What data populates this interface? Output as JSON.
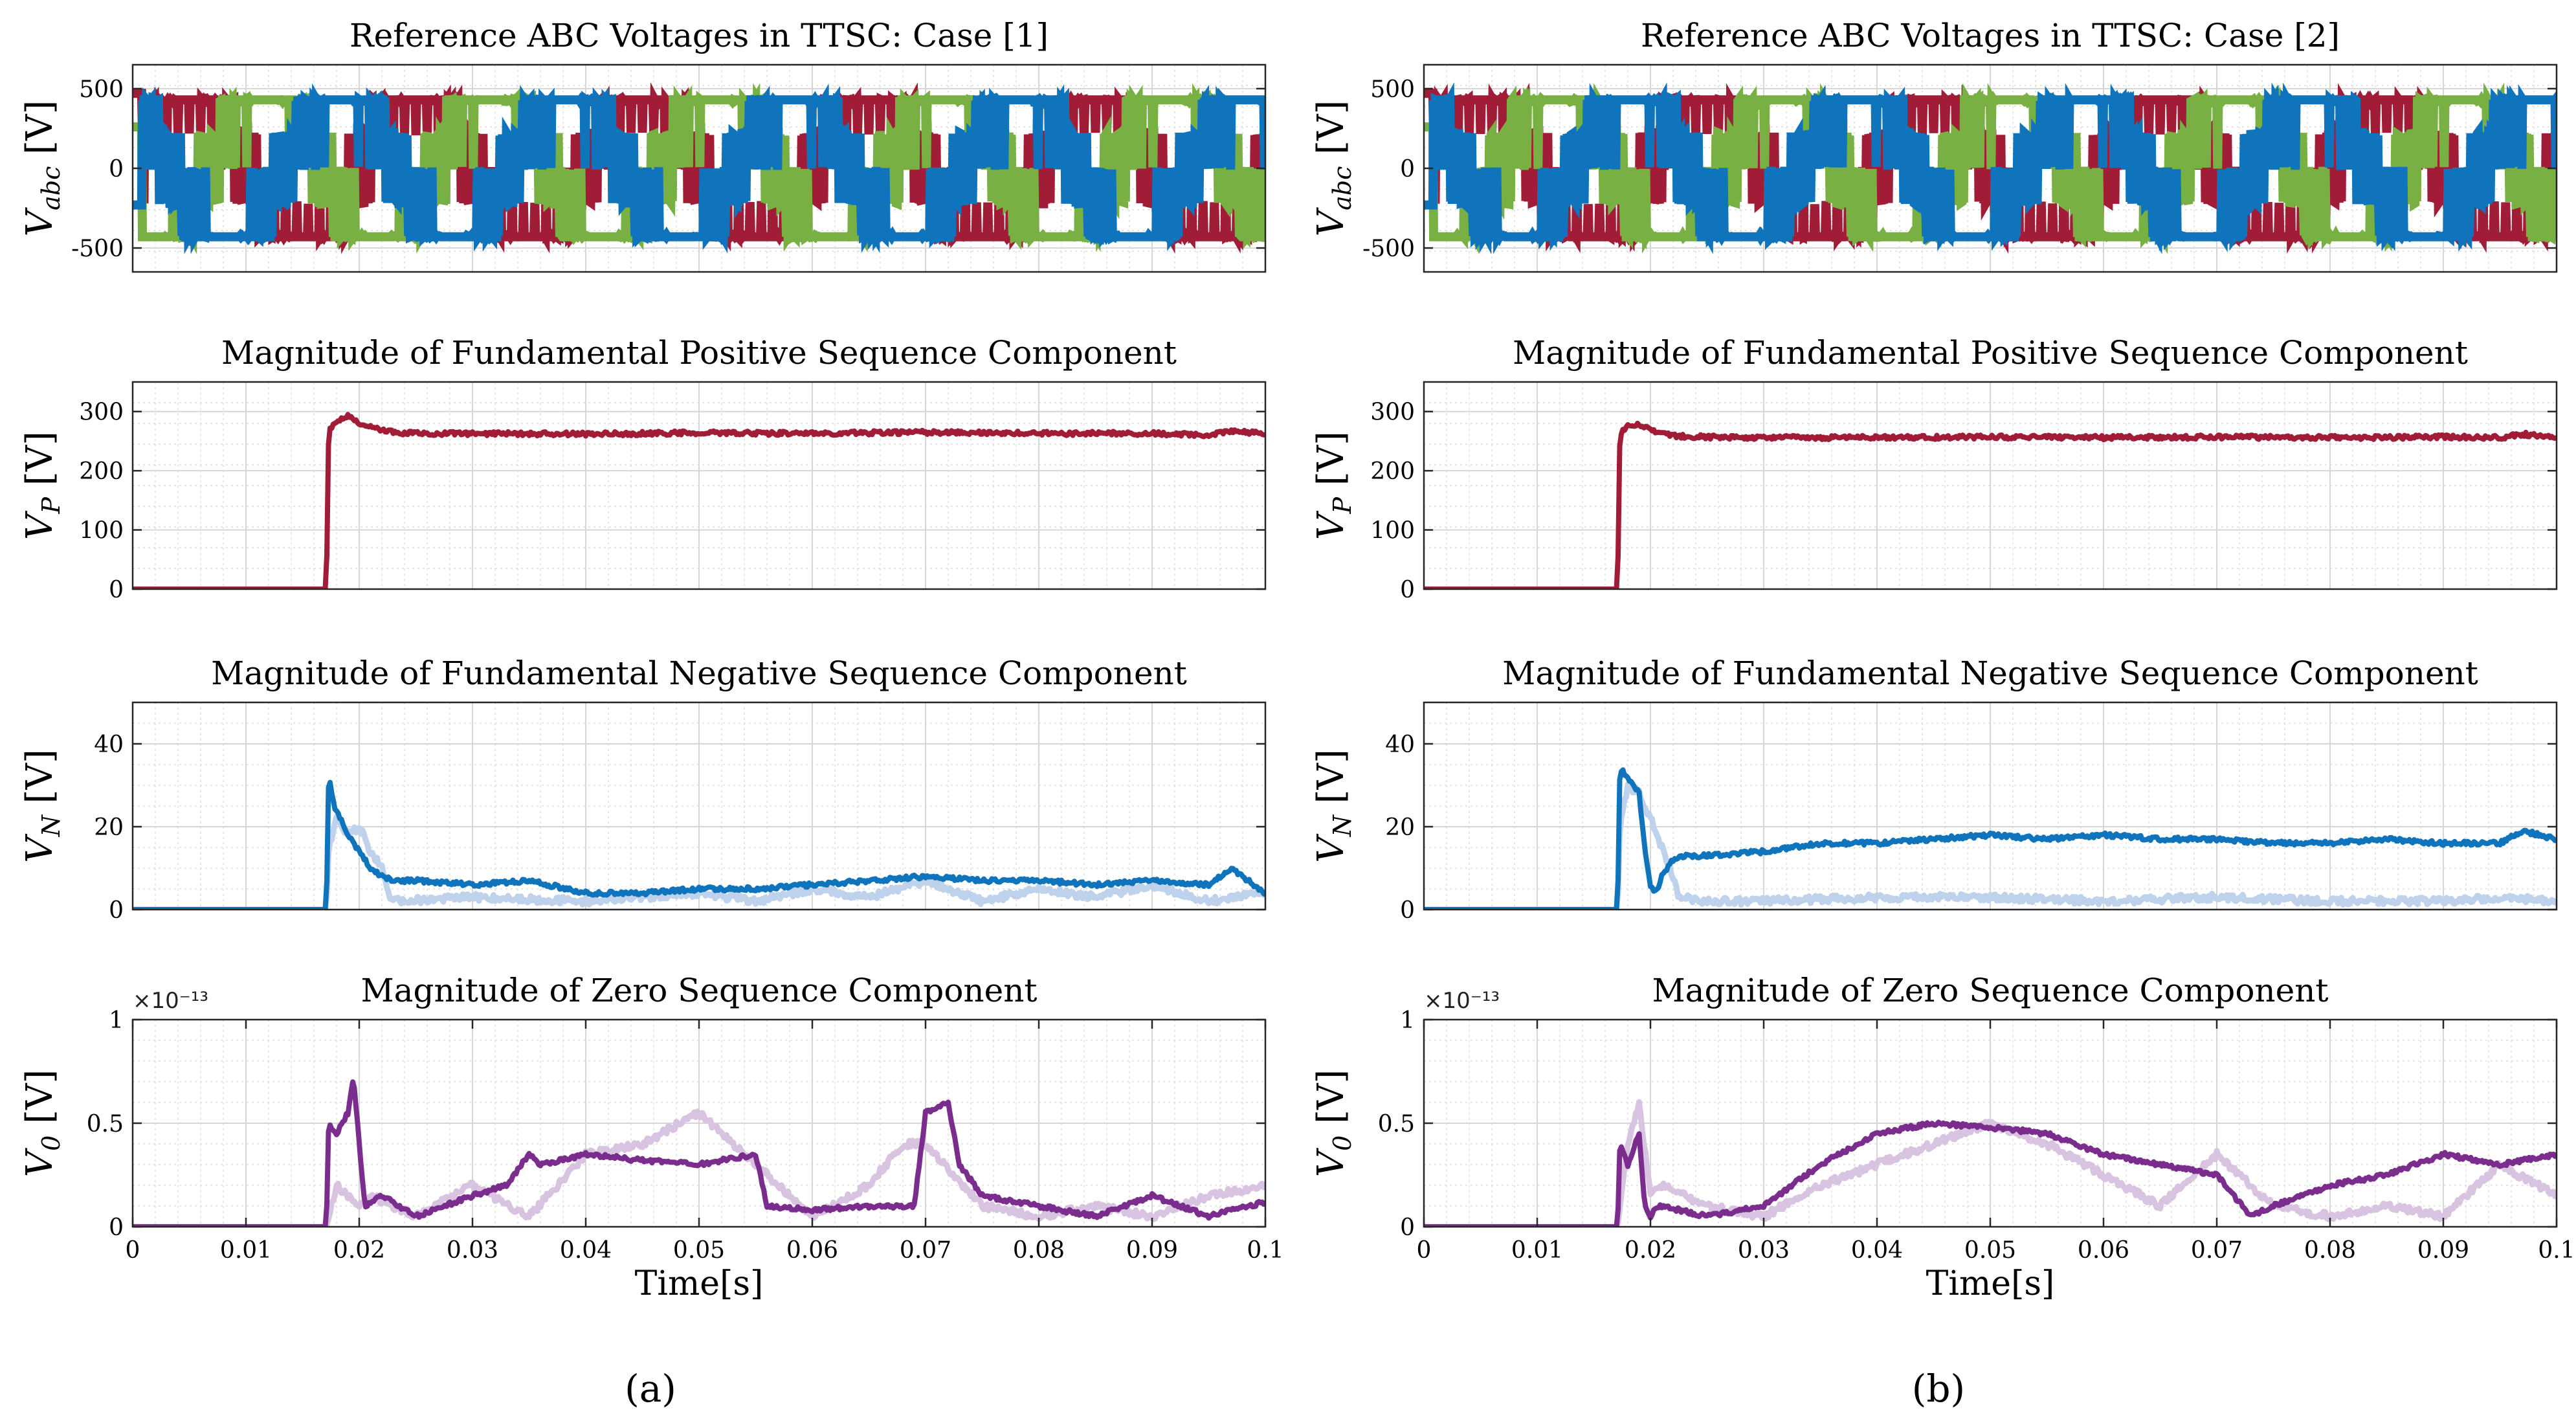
{
  "figure": {
    "panel_labels": [
      "(a)",
      "(b)"
    ],
    "x_label": "Time[s]",
    "colors": {
      "red": "#a11d37",
      "green": "#78b043",
      "blue": "#0f74bc",
      "blue_faint": "#bfd2ec",
      "purple": "#7b2d8e",
      "purple_faint": "#d8c4e0",
      "grid": "#d6d6d6"
    }
  },
  "chart_data": [
    {
      "id": "a1",
      "column": "a",
      "row": 0,
      "type": "line",
      "title": "Reference ABC Voltages in TTSC: Case [1]",
      "ylabel": "V_abc [V]",
      "xlim": [
        0,
        0.1
      ],
      "ylim": [
        -650,
        650
      ],
      "yticks": [
        -500,
        0,
        500
      ],
      "xticks": [],
      "series": [
        {
          "name": "a",
          "color": "#a11d37",
          "switching": true,
          "amplitude": 430,
          "phase_deg": 0,
          "frequency_hz": 50
        },
        {
          "name": "b",
          "color": "#78b043",
          "switching": true,
          "amplitude": 430,
          "phase_deg": -120,
          "frequency_hz": 50
        },
        {
          "name": "c",
          "color": "#0f74bc",
          "switching": true,
          "amplitude": 430,
          "phase_deg": 120,
          "frequency_hz": 50
        }
      ]
    },
    {
      "id": "a2",
      "column": "a",
      "row": 1,
      "type": "line",
      "title": "Magnitude of Fundamental Positive Sequence Component",
      "ylabel": "V_P [V]",
      "xlim": [
        0,
        0.1
      ],
      "ylim": [
        0,
        350
      ],
      "yticks": [
        0,
        100,
        200,
        300
      ],
      "xticks": [],
      "series": [
        {
          "name": "V_P",
          "color": "#a11d37",
          "x": [
            0,
            0.0171,
            0.0173,
            0.018,
            0.0185,
            0.019,
            0.0195,
            0.02,
            0.021,
            0.022,
            0.023,
            0.025,
            0.03,
            0.04,
            0.05,
            0.06,
            0.07,
            0.08,
            0.09,
            0.095,
            0.097,
            0.1
          ],
          "y": [
            0,
            0,
            265,
            285,
            288,
            292,
            287,
            280,
            273,
            268,
            265,
            263,
            263,
            262,
            264,
            263,
            265,
            263,
            263,
            260,
            268,
            262
          ]
        }
      ]
    },
    {
      "id": "a3",
      "column": "a",
      "row": 2,
      "type": "line",
      "title": "Magnitude of Fundamental Negative Sequence Component",
      "ylabel": "V_N [V]",
      "xlim": [
        0,
        0.1
      ],
      "ylim": [
        0,
        50
      ],
      "yticks": [
        0,
        20,
        40
      ],
      "xticks": [],
      "series": [
        {
          "name": "V_N (faint)",
          "color": "#bfd2ec",
          "x": [
            0,
            0.0171,
            0.0173,
            0.018,
            0.019,
            0.02,
            0.021,
            0.022,
            0.0225,
            0.023,
            0.03,
            0.04,
            0.05,
            0.055,
            0.06,
            0.065,
            0.07,
            0.075,
            0.08,
            0.085,
            0.09,
            0.095,
            0.1
          ],
          "y": [
            0,
            0,
            15,
            22,
            18,
            20,
            14,
            10,
            4,
            2,
            3,
            2,
            4,
            2,
            5,
            3,
            7,
            2,
            5,
            3,
            6,
            2,
            4
          ]
        },
        {
          "name": "V_N",
          "color": "#0f74bc",
          "x": [
            0,
            0.0171,
            0.0173,
            0.0178,
            0.019,
            0.02,
            0.021,
            0.022,
            0.023,
            0.025,
            0.03,
            0.035,
            0.04,
            0.045,
            0.05,
            0.055,
            0.06,
            0.065,
            0.07,
            0.075,
            0.08,
            0.085,
            0.09,
            0.095,
            0.097,
            0.1
          ],
          "y": [
            0,
            0,
            32,
            25,
            18,
            14,
            10,
            8,
            7,
            7,
            6,
            7,
            4,
            4,
            5,
            5,
            6,
            7,
            8,
            7,
            7,
            6,
            7,
            6,
            10,
            4
          ]
        }
      ]
    },
    {
      "id": "a4",
      "column": "a",
      "row": 3,
      "type": "line",
      "title": "Magnitude of Zero Sequence Component",
      "ylabel": "V_0 [V]",
      "xlim": [
        0,
        0.1
      ],
      "ylim": [
        0,
        1
      ],
      "yticks": [
        0,
        0.5,
        1
      ],
      "ytick_labels": [
        "0",
        "0.5",
        "1"
      ],
      "multiplier": "×10⁻¹³",
      "xticks": [
        0,
        0.01,
        0.02,
        0.03,
        0.04,
        0.05,
        0.06,
        0.07,
        0.08,
        0.09,
        0.1
      ],
      "xtick_labels": [
        "0",
        "0.01",
        "0.02",
        "0.03",
        "0.04",
        "0.05",
        "0.06",
        "0.07",
        "0.08",
        "0.09",
        "0.1"
      ],
      "xlabel": "Time[s]",
      "series": [
        {
          "name": "V_0 (faint)",
          "color": "#d8c4e0",
          "x": [
            0,
            0.0171,
            0.0175,
            0.018,
            0.019,
            0.02,
            0.021,
            0.025,
            0.03,
            0.035,
            0.04,
            0.045,
            0.05,
            0.055,
            0.06,
            0.065,
            0.068,
            0.07,
            0.075,
            0.08,
            0.085,
            0.09,
            0.095,
            0.1
          ],
          "y": [
            0,
            0,
            0.1,
            0.2,
            0.15,
            0.1,
            0.15,
            0.05,
            0.2,
            0.05,
            0.35,
            0.4,
            0.55,
            0.3,
            0.05,
            0.2,
            0.4,
            0.4,
            0.1,
            0.05,
            0.1,
            0.05,
            0.15,
            0.2
          ]
        },
        {
          "name": "V_0",
          "color": "#7b2d8e",
          "x": [
            0,
            0.0171,
            0.0173,
            0.018,
            0.019,
            0.0195,
            0.02,
            0.0205,
            0.022,
            0.025,
            0.03,
            0.033,
            0.035,
            0.036,
            0.04,
            0.045,
            0.05,
            0.055,
            0.056,
            0.06,
            0.065,
            0.069,
            0.07,
            0.072,
            0.073,
            0.075,
            0.08,
            0.085,
            0.09,
            0.095,
            0.1
          ],
          "y": [
            0,
            0,
            0.5,
            0.45,
            0.55,
            0.72,
            0.4,
            0.1,
            0.15,
            0.05,
            0.15,
            0.2,
            0.35,
            0.3,
            0.35,
            0.32,
            0.3,
            0.35,
            0.1,
            0.08,
            0.1,
            0.1,
            0.55,
            0.6,
            0.3,
            0.15,
            0.1,
            0.05,
            0.15,
            0.05,
            0.12
          ]
        }
      ]
    },
    {
      "id": "b1",
      "column": "b",
      "row": 0,
      "type": "line",
      "title": "Reference ABC Voltages in TTSC: Case [2]",
      "ylabel": "V_abc [V]",
      "xlim": [
        0,
        0.1
      ],
      "ylim": [
        -650,
        650
      ],
      "yticks": [
        -500,
        0,
        500
      ],
      "xticks": [],
      "series": [
        {
          "name": "a",
          "color": "#a11d37",
          "switching": true,
          "amplitude": 430,
          "phase_deg": 0,
          "frequency_hz": 50
        },
        {
          "name": "b",
          "color": "#78b043",
          "switching": true,
          "amplitude": 430,
          "phase_deg": -120,
          "frequency_hz": 50
        },
        {
          "name": "c",
          "color": "#0f74bc",
          "switching": true,
          "amplitude": 430,
          "phase_deg": 120,
          "frequency_hz": 50
        }
      ]
    },
    {
      "id": "b2",
      "column": "b",
      "row": 1,
      "type": "line",
      "title": "Magnitude of Fundamental Positive Sequence Component",
      "ylabel": "V_P [V]",
      "xlim": [
        0,
        0.1
      ],
      "ylim": [
        0,
        350
      ],
      "yticks": [
        0,
        100,
        200,
        300
      ],
      "xticks": [],
      "series": [
        {
          "name": "V_P",
          "color": "#a11d37",
          "x": [
            0,
            0.0171,
            0.0173,
            0.018,
            0.0185,
            0.019,
            0.02,
            0.021,
            0.022,
            0.025,
            0.03,
            0.04,
            0.05,
            0.06,
            0.07,
            0.08,
            0.09,
            0.095,
            0.097,
            0.1
          ],
          "y": [
            0,
            0,
            262,
            275,
            277,
            278,
            270,
            263,
            259,
            257,
            256,
            256,
            257,
            256,
            257,
            256,
            257,
            256,
            262,
            256
          ]
        }
      ]
    },
    {
      "id": "b3",
      "column": "b",
      "row": 2,
      "type": "line",
      "title": "Magnitude of Fundamental Negative Sequence Component",
      "ylabel": "V_N [V]",
      "xlim": [
        0,
        0.1
      ],
      "ylim": [
        0,
        50
      ],
      "yticks": [
        0,
        20,
        40
      ],
      "xticks": [],
      "series": [
        {
          "name": "V_N (faint)",
          "color": "#bfd2ec",
          "x": [
            0,
            0.0171,
            0.0173,
            0.018,
            0.019,
            0.02,
            0.021,
            0.022,
            0.0225,
            0.025,
            0.03,
            0.04,
            0.05,
            0.06,
            0.07,
            0.08,
            0.09,
            0.095,
            0.1
          ],
          "y": [
            0,
            0,
            20,
            30,
            28,
            22,
            15,
            8,
            3,
            2,
            2,
            3,
            3,
            2,
            3,
            2,
            2,
            3,
            2
          ]
        },
        {
          "name": "V_N",
          "color": "#0f74bc",
          "x": [
            0,
            0.0171,
            0.0173,
            0.018,
            0.019,
            0.0195,
            0.02,
            0.0205,
            0.021,
            0.022,
            0.023,
            0.025,
            0.03,
            0.035,
            0.04,
            0.045,
            0.05,
            0.055,
            0.06,
            0.065,
            0.07,
            0.075,
            0.08,
            0.085,
            0.09,
            0.095,
            0.097,
            0.1
          ],
          "y": [
            0,
            0,
            34,
            32,
            28,
            15,
            6,
            4,
            8,
            12,
            13,
            13,
            14,
            16,
            16,
            17,
            18,
            17,
            18,
            17,
            17,
            16,
            16,
            17,
            16,
            16,
            19,
            17
          ]
        }
      ]
    },
    {
      "id": "b4",
      "column": "b",
      "row": 3,
      "type": "line",
      "title": "Magnitude of Zero Sequence Component",
      "ylabel": "V_0 [V]",
      "xlim": [
        0,
        0.1
      ],
      "ylim": [
        0,
        1
      ],
      "yticks": [
        0,
        0.5,
        1
      ],
      "ytick_labels": [
        "0",
        "0.5",
        "1"
      ],
      "multiplier": "×10⁻¹³",
      "xticks": [
        0,
        0.01,
        0.02,
        0.03,
        0.04,
        0.05,
        0.06,
        0.07,
        0.08,
        0.09,
        0.1
      ],
      "xtick_labels": [
        "0",
        "0.01",
        "0.02",
        "0.03",
        "0.04",
        "0.05",
        "0.06",
        "0.07",
        "0.08",
        "0.09",
        "0.1"
      ],
      "xlabel": "Time[s]",
      "series": [
        {
          "name": "V_0 (faint)",
          "color": "#d8c4e0",
          "x": [
            0,
            0.0171,
            0.0175,
            0.018,
            0.019,
            0.02,
            0.021,
            0.025,
            0.03,
            0.035,
            0.04,
            0.045,
            0.05,
            0.055,
            0.06,
            0.065,
            0.07,
            0.075,
            0.08,
            0.085,
            0.09,
            0.095,
            0.1
          ],
          "y": [
            0,
            0,
            0.2,
            0.4,
            0.6,
            0.15,
            0.2,
            0.1,
            0.05,
            0.2,
            0.3,
            0.4,
            0.5,
            0.4,
            0.25,
            0.1,
            0.35,
            0.1,
            0.05,
            0.1,
            0.05,
            0.3,
            0.15
          ]
        },
        {
          "name": "V_0",
          "color": "#7b2d8e",
          "x": [
            0,
            0.0171,
            0.0173,
            0.018,
            0.019,
            0.0195,
            0.02,
            0.0205,
            0.021,
            0.025,
            0.03,
            0.035,
            0.04,
            0.045,
            0.05,
            0.055,
            0.06,
            0.065,
            0.07,
            0.073,
            0.075,
            0.08,
            0.085,
            0.09,
            0.095,
            0.1
          ],
          "y": [
            0,
            0,
            0.4,
            0.3,
            0.45,
            0.1,
            0.05,
            0.1,
            0.1,
            0.05,
            0.1,
            0.3,
            0.45,
            0.5,
            0.48,
            0.45,
            0.35,
            0.3,
            0.25,
            0.05,
            0.1,
            0.2,
            0.25,
            0.35,
            0.3,
            0.35
          ]
        }
      ]
    }
  ]
}
